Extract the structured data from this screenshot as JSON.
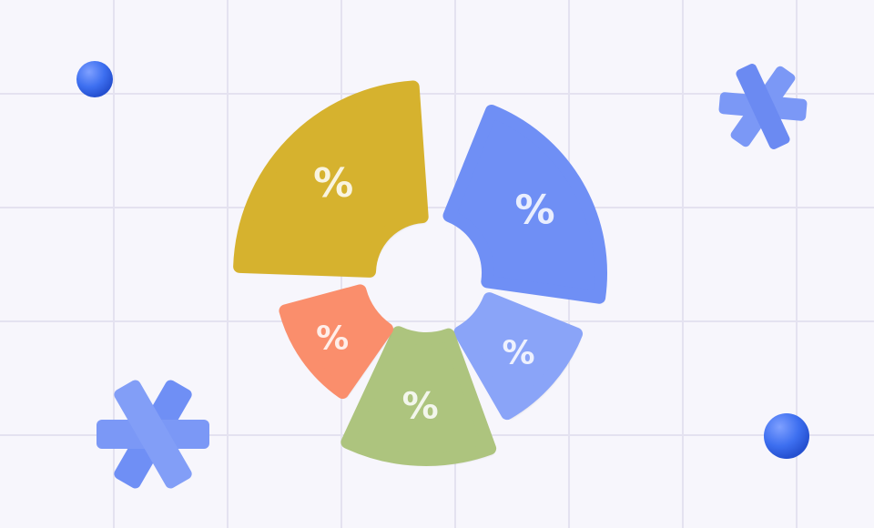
{
  "colors": {
    "background": "#f7f6fc",
    "grid": "#e4e2f0",
    "yellow": "#d6b22e",
    "blue": "#6f8ff5",
    "light_blue": "#8aa4f8",
    "green": "#adc47e",
    "orange": "#fa8e6c",
    "sphere": "#3d6ff0"
  },
  "segments": [
    {
      "label": "%",
      "color": "yellow"
    },
    {
      "label": "%",
      "color": "blue"
    },
    {
      "label": "%",
      "color": "light_blue"
    },
    {
      "label": "%",
      "color": "green"
    },
    {
      "label": "%",
      "color": "orange"
    }
  ],
  "decorations": [
    "sphere-icon",
    "asterisk-icon",
    "asterisk-icon",
    "sphere-icon"
  ]
}
